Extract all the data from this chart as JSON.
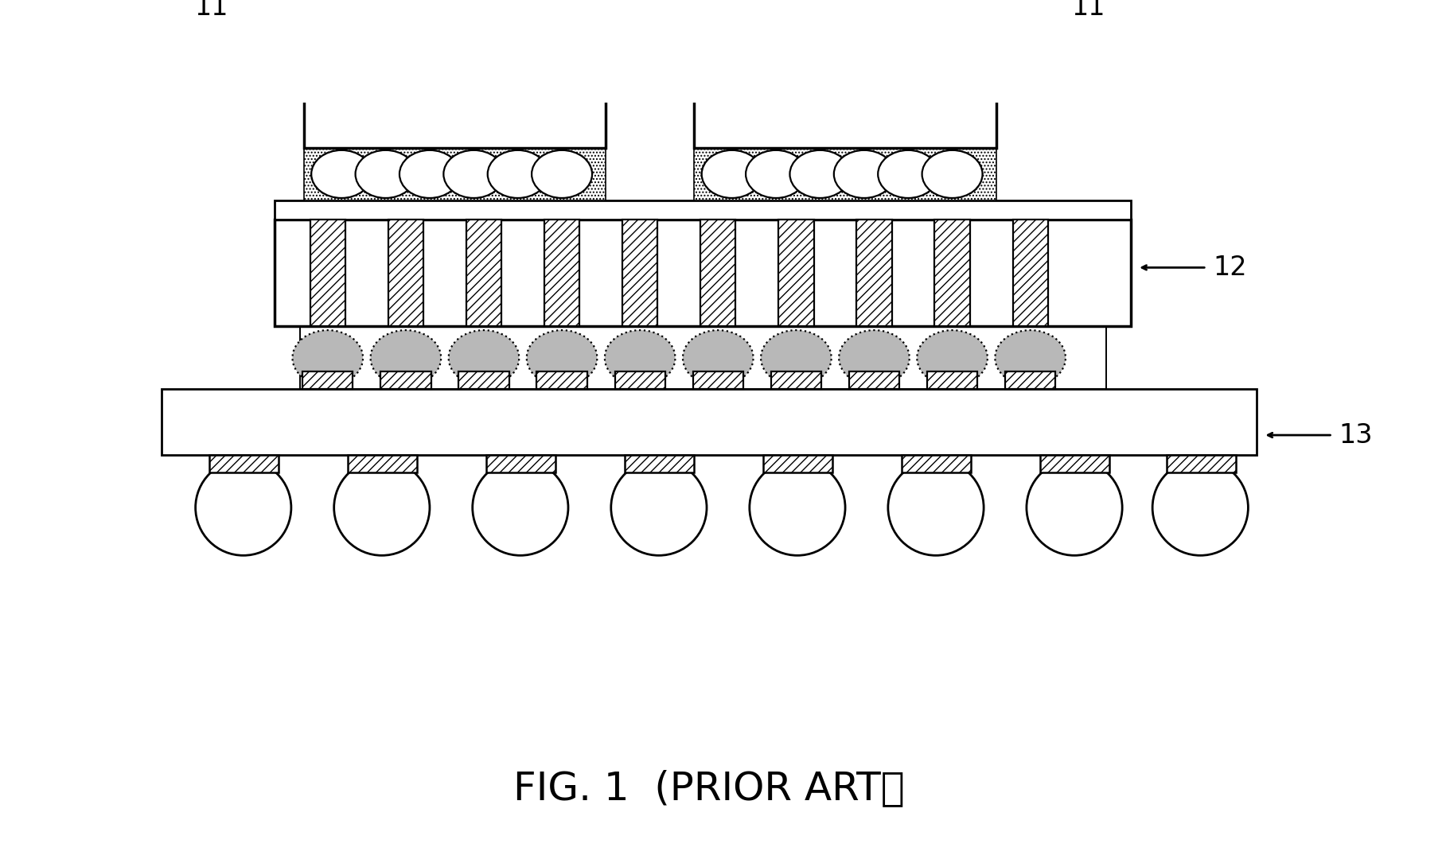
{
  "fig_width": 18.17,
  "fig_height": 10.85,
  "bg_color": "#ffffff",
  "lw": 2.0,
  "title": "FIG. 1  (PRIOR ART）",
  "title_fontsize": 36,
  "label_fontsize": 24
}
